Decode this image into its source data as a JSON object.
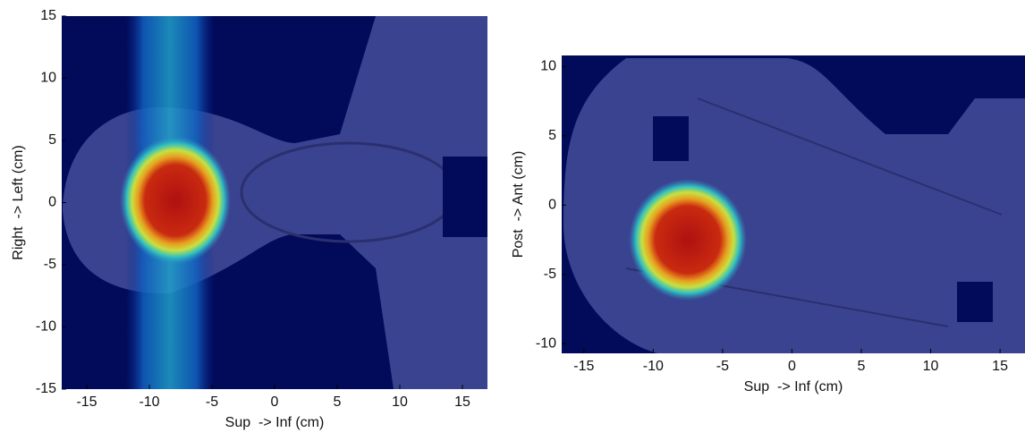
{
  "chart_data": [
    {
      "type": "image",
      "xlabel": "Sup  -> Inf (cm)",
      "ylabel": "Right  -> Left (cm)",
      "xlim": [
        -17,
        17
      ],
      "ylim": [
        -15,
        15
      ],
      "xticks": [
        -15,
        -10,
        -5,
        0,
        5,
        10,
        15
      ],
      "yticks": [
        -15,
        -10,
        -5,
        0,
        5,
        10,
        15
      ]
    },
    {
      "type": "image",
      "xlabel": "Sup  -> Inf (cm)",
      "ylabel": "Post  -> Ant (cm)",
      "xlim": [
        -16.6,
        16.8
      ],
      "ylim": [
        -10.7,
        10.8
      ],
      "xticks": [
        -15,
        -10,
        -5,
        0,
        5,
        10,
        15
      ],
      "yticks": [
        -10,
        -5,
        0,
        5,
        10
      ]
    }
  ]
}
